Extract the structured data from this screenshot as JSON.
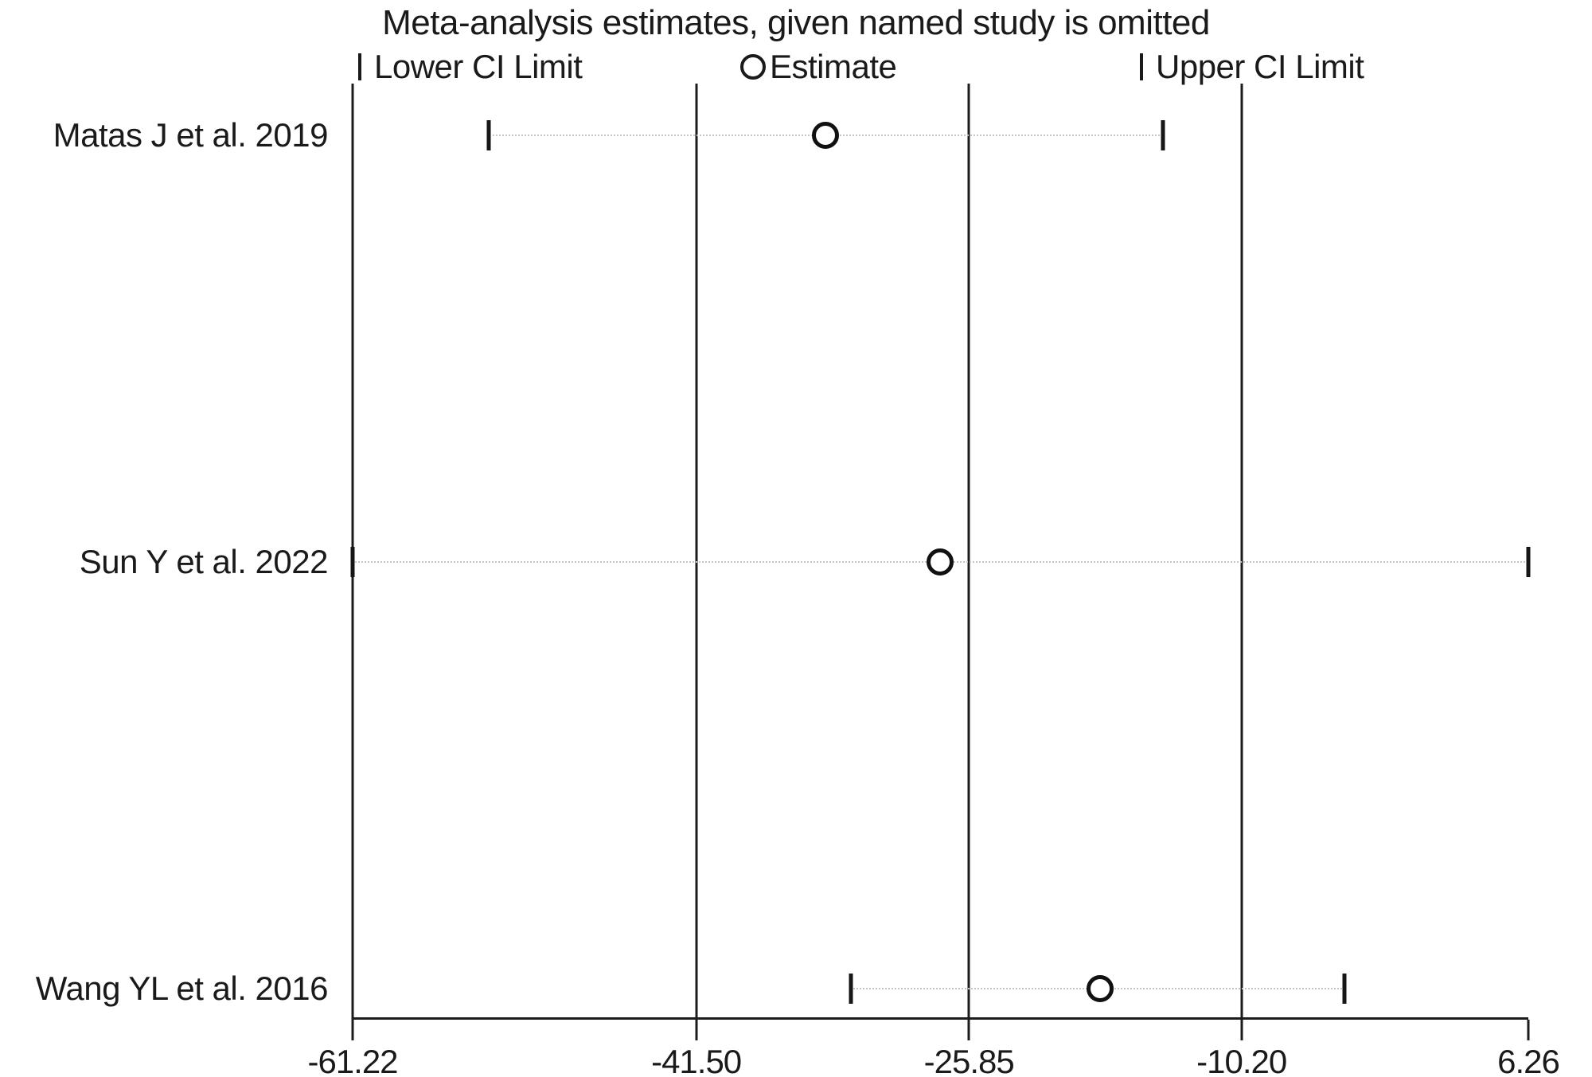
{
  "title": "Meta-analysis estimates, given named study is omitted",
  "legend": {
    "lower_label": "Lower CI Limit",
    "estimate_label": "Estimate",
    "upper_label": "Upper CI Limit"
  },
  "colors": {
    "line": "#1c1c1c",
    "text": "#1a1a1a",
    "dotted_connector": "#c6c6c6",
    "background": "#ffffff"
  },
  "chart_data": {
    "type": "scatter",
    "subtype": "leave-one-out-sensitivity-forest",
    "title": "Meta-analysis estimates, given named study is omitted",
    "xlabel": "",
    "ylabel": "",
    "xlim": [
      -61.22,
      6.26
    ],
    "x_tick_values": [
      -61.22,
      -41.5,
      -25.85,
      -10.2,
      6.26
    ],
    "x_tick_labels": [
      "-61.22",
      "-41.50",
      "-25.85",
      "-10.20",
      "6.26"
    ],
    "gridline_values": [
      -61.22,
      -41.5,
      -25.85,
      -10.2
    ],
    "grid": "vertical-only",
    "legend_position": "top",
    "legend_entries": [
      "Lower CI Limit",
      "Estimate",
      "Upper CI Limit"
    ],
    "studies": [
      {
        "label": "Matas J et al. 2019",
        "lower": -53.4,
        "estimate": -34.1,
        "upper": -14.7
      },
      {
        "label": "Sun Y et al. 2022",
        "lower": -61.22,
        "estimate": -27.5,
        "upper": 6.26
      },
      {
        "label": "Wang YL et al. 2016",
        "lower": -32.6,
        "estimate": -18.3,
        "upper": -4.3
      }
    ],
    "row_layout": {
      "first_row_pct": 5.5,
      "last_row_pct": 96.9
    }
  }
}
